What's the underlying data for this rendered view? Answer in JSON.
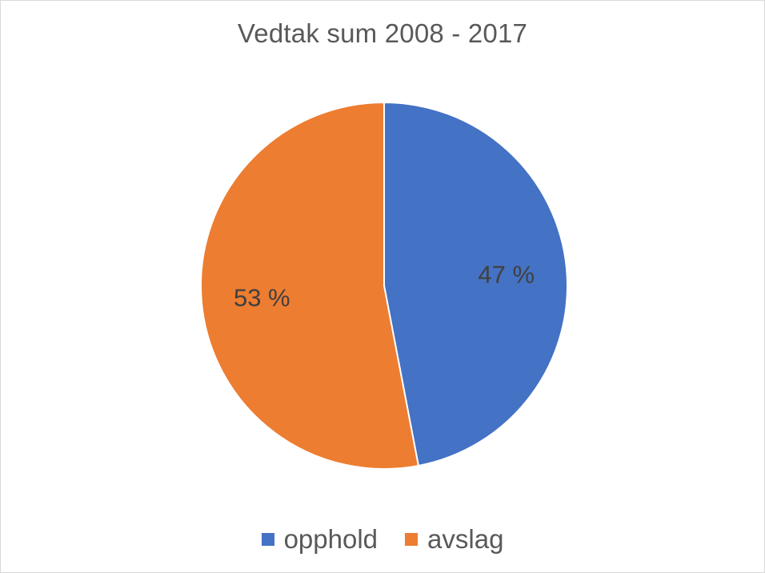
{
  "chart_data": {
    "type": "pie",
    "title": "Vedtak sum 2008 - 2017",
    "slices": [
      {
        "label": "opphold",
        "value": 47,
        "display": "47 %",
        "color": "#4472c4"
      },
      {
        "label": "avslag",
        "value": 53,
        "display": "53 %",
        "color": "#ed7d31"
      }
    ],
    "legend_position": "bottom",
    "start_angle_deg": 0,
    "direction": "clockwise"
  }
}
